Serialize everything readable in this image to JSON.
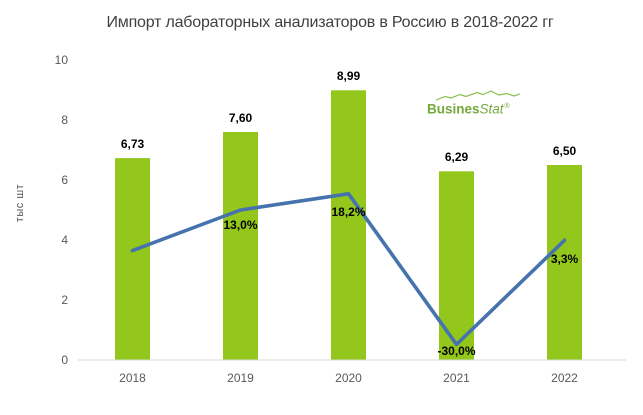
{
  "chart_data": {
    "type": "bar",
    "subtype": "bar-with-line-overlay",
    "title": "Импорт лабораторных анализаторов в Россию в 2018-2022 гг",
    "categories": [
      "2018",
      "2019",
      "2020",
      "2021",
      "2022"
    ],
    "bar_series": {
      "values": [
        6.73,
        7.6,
        8.99,
        6.29,
        6.5
      ],
      "labels": [
        "6,73",
        "7,60",
        "8,99",
        "6,29",
        "6,50"
      ],
      "color": "#94C71C"
    },
    "line_series": {
      "values_percent": [
        0.0,
        13.0,
        18.2,
        -30.0,
        3.3
      ],
      "labels": [
        "",
        "13,0%",
        "18,2%",
        "-30,0%",
        "3,3%"
      ],
      "first_point_unlabeled_estimate": true,
      "secondary_ylim": [
        -35,
        61
      ],
      "color": "#4673AE"
    },
    "ylabel": "тыс шт",
    "yticks": [
      0,
      2,
      4,
      6,
      8,
      10
    ],
    "ylim": [
      0,
      10
    ],
    "grid": false,
    "legend": "none",
    "axis_line_color": "#D9D9D9",
    "title_color": "#404040",
    "tick_color": "#595959"
  },
  "watermark": {
    "bold": "Busines",
    "italic": "Stat",
    "reg": "®",
    "color": "#74A93C"
  }
}
